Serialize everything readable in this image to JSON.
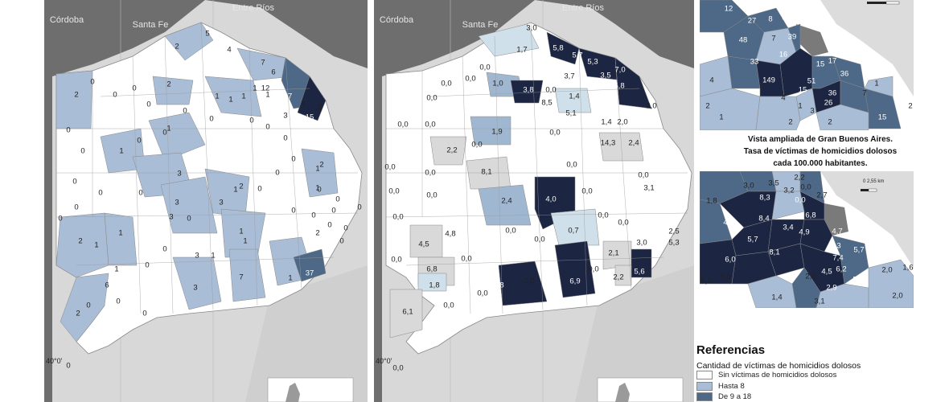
{
  "colors": {
    "none": "#ffffff",
    "low": "#a9bdd6",
    "mid": "#4d6987",
    "high": "#1c2541",
    "rate_lowest": "#cfe0ea",
    "rate_mid": "#9fb7d0",
    "rate_grey": "#d9d9d9",
    "neighbor": "#6e6e6e",
    "ocean": "#d8d8d8"
  },
  "map1": {
    "provinces": [
      "Córdoba",
      "Santa Fe",
      "Entre Ríos"
    ],
    "meridian": "40°0'",
    "labels": [
      "5",
      "4",
      "7",
      "6",
      "2",
      "2",
      "0",
      "0",
      "2",
      "1",
      "1",
      "1",
      "1",
      "1",
      "12",
      "37",
      "3",
      "7",
      "2",
      "15",
      "0",
      "0",
      "0",
      "0",
      "1",
      "3",
      "0",
      "0",
      "0",
      "1",
      "3",
      "0",
      "1",
      "2",
      "0",
      "0",
      "0",
      "0",
      "1",
      "2",
      "0",
      "0",
      "0",
      "0",
      "1",
      "3",
      "0",
      "1",
      "2",
      "0",
      "0",
      "0",
      "0",
      "1",
      "0",
      "0",
      "3",
      "1",
      "1",
      "6",
      "0",
      "0",
      "3",
      "7",
      "1",
      "37",
      "2",
      "0",
      "0",
      "0",
      "0",
      "0",
      "0",
      "0",
      "0",
      "3",
      "1",
      "1",
      "2",
      "0",
      "0"
    ]
  },
  "map2": {
    "provinces": [
      "Córdoba",
      "Santa Fe",
      "Entre Ríos"
    ],
    "meridian": "40°0'",
    "labels": [
      "3,0",
      "1,7",
      "5,8",
      "5,3",
      "7,0",
      "5,7",
      "0,0",
      "1,0",
      "3,8",
      "3,7",
      "3,5",
      "0,0",
      "0,0",
      "1,4",
      "8,5",
      "6,8",
      "0,0",
      "0,0",
      "2,0",
      "5,1",
      "1,4",
      "2,0",
      "0,0",
      "0,0",
      "1,9",
      "0,0",
      "14,3",
      "2,4",
      "2,2",
      "0,0",
      "0,0",
      "8,1",
      "0,0",
      "0,0",
      "3,1",
      "0,0",
      "0,0",
      "2,4",
      "4,0",
      "0,0",
      "0,0",
      "0,0",
      "0,0",
      "0,0",
      "0,7",
      "0,0",
      "4,5",
      "4,8",
      "0,0",
      "0,0",
      "3,0",
      "5,3",
      "0,0",
      "6,8",
      "2,1",
      "2,5",
      "1,8",
      "0,0",
      "4,8",
      "0,0",
      "6,9",
      "2,2",
      "5,6",
      "6,1",
      "0,0",
      "0,0",
      "0,0"
    ]
  },
  "inset1": {
    "labels": [
      "12",
      "27",
      "8",
      "3",
      "48",
      "7",
      "39",
      "16",
      "33",
      "149",
      "15",
      "17",
      "51",
      "36",
      "4",
      "4",
      "15",
      "36",
      "26",
      "1",
      "7",
      "1",
      "2",
      "1",
      "3",
      "15",
      "2",
      "2",
      "2"
    ]
  },
  "inset2": {
    "labels": [
      "2,2",
      "3,0",
      "3,5",
      "3,2",
      "0,0",
      "1,8",
      "8,3",
      "0,0",
      "2,7",
      "4,2",
      "8,4",
      "6,8",
      "3,4",
      "4,9",
      "4,7",
      "5,7",
      "8,1",
      "3,3",
      "5,7",
      "6,0",
      "7,4",
      "4,5",
      "6,2",
      "5,3",
      "2,9",
      "2,0",
      "2,0",
      "1,6",
      "5,1",
      "0,0",
      "1,4",
      "3,1",
      "2,0"
    ],
    "scale_label": "0 2,55 km"
  },
  "caption": {
    "line1": "Vista ampliada de Gran Buenos Aires.",
    "line2": "Tasa de víctimas de homicidios dolosos",
    "line3": "cada 100.000 habitantes."
  },
  "legend": {
    "title": "Referencias",
    "subtitle": "Cantidad de víctimas de homicidios dolosos",
    "items": [
      {
        "label": "Sin víctimas de homicidios dolosos",
        "color": "#ffffff"
      },
      {
        "label": "Hasta 8",
        "color": "#a9bdd6"
      },
      {
        "label": "De 9 a 18",
        "color": "#4d6987"
      }
    ]
  }
}
